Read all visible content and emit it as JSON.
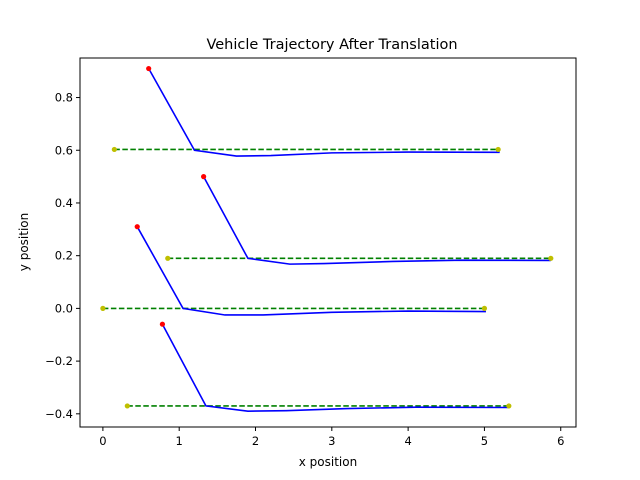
{
  "chart_data": {
    "type": "line",
    "title": "Vehicle Trajectory After Translation",
    "xlabel": "x position",
    "ylabel": "y position",
    "xlim": [
      -0.3,
      6.2
    ],
    "ylim": [
      -0.45,
      0.95
    ],
    "xticks": [
      0,
      1,
      2,
      3,
      4,
      5,
      6
    ],
    "yticks": [
      -0.4,
      -0.2,
      0.0,
      0.2,
      0.4,
      0.6,
      0.8
    ],
    "ytick_labels": [
      "−0.4",
      "−0.2",
      "0.0",
      "0.2",
      "0.4",
      "0.6",
      "0.8"
    ],
    "grid": false,
    "legend": "none",
    "colors": {
      "trajectory": "#0000ff",
      "reference": "#008000",
      "start_point": "#ff0000",
      "reference_point": "#bfbf00"
    },
    "trajectories": [
      {
        "start": [
          0.6,
          0.91
        ],
        "path": [
          [
            0.6,
            0.91
          ],
          [
            1.2,
            0.6
          ],
          [
            1.75,
            0.578
          ],
          [
            2.2,
            0.58
          ],
          [
            3.0,
            0.59
          ],
          [
            4.0,
            0.593
          ],
          [
            5.2,
            0.592
          ]
        ],
        "reference": [
          [
            0.15,
            0.603
          ],
          [
            5.18,
            0.603
          ]
        ]
      },
      {
        "start": [
          1.32,
          0.5
        ],
        "path": [
          [
            1.32,
            0.5
          ],
          [
            1.9,
            0.19
          ],
          [
            2.45,
            0.168
          ],
          [
            2.9,
            0.17
          ],
          [
            3.8,
            0.178
          ],
          [
            4.7,
            0.183
          ],
          [
            5.87,
            0.182
          ]
        ],
        "reference": [
          [
            0.85,
            0.19
          ],
          [
            5.87,
            0.19
          ]
        ]
      },
      {
        "start": [
          0.45,
          0.31
        ],
        "path": [
          [
            0.45,
            0.31
          ],
          [
            1.05,
            0.0
          ],
          [
            1.6,
            -0.025
          ],
          [
            2.1,
            -0.025
          ],
          [
            3.0,
            -0.015
          ],
          [
            4.0,
            -0.01
          ],
          [
            5.02,
            -0.012
          ]
        ],
        "reference": [
          [
            0.0,
            0.0
          ],
          [
            5.0,
            0.0
          ]
        ]
      },
      {
        "start": [
          0.78,
          -0.06
        ],
        "path": [
          [
            0.78,
            -0.06
          ],
          [
            1.35,
            -0.37
          ],
          [
            1.9,
            -0.39
          ],
          [
            2.4,
            -0.388
          ],
          [
            3.2,
            -0.38
          ],
          [
            4.1,
            -0.375
          ],
          [
            5.32,
            -0.376
          ]
        ],
        "reference": [
          [
            0.32,
            -0.37
          ],
          [
            5.32,
            -0.37
          ]
        ]
      }
    ]
  }
}
